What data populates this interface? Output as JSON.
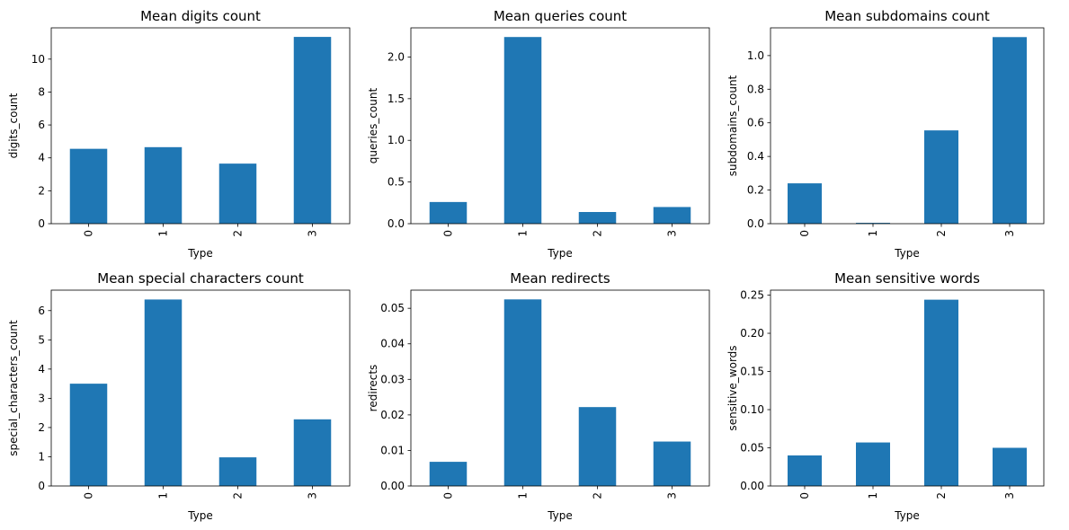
{
  "figure": {
    "bar_color": "#1f77b4",
    "edge_color": "#000000",
    "background": "#ffffff"
  },
  "chart_data": [
    {
      "type": "bar",
      "title": "Mean digits count",
      "xlabel": "Type",
      "ylabel": "digits_count",
      "categories": [
        "0",
        "1",
        "2",
        "3"
      ],
      "values": [
        4.55,
        4.65,
        3.65,
        11.35
      ],
      "ylim": [
        0,
        11.9
      ],
      "yticks": [
        0,
        2,
        4,
        6,
        8,
        10
      ],
      "ytick_labels": [
        "0",
        "2",
        "4",
        "6",
        "8",
        "10"
      ],
      "grid": false,
      "legend": "none"
    },
    {
      "type": "bar",
      "title": "Mean queries count",
      "xlabel": "Type",
      "ylabel": "queries_count",
      "categories": [
        "0",
        "1",
        "2",
        "3"
      ],
      "values": [
        0.26,
        2.24,
        0.14,
        0.2
      ],
      "ylim": [
        0,
        2.35
      ],
      "yticks": [
        0,
        0.5,
        1,
        1.5,
        2
      ],
      "ytick_labels": [
        "0.0",
        "0.5",
        "1.0",
        "1.5",
        "2.0"
      ],
      "grid": false,
      "legend": "none"
    },
    {
      "type": "bar",
      "title": "Mean subdomains count",
      "xlabel": "Type",
      "ylabel": "subdomains_count",
      "categories": [
        "0",
        "1",
        "2",
        "3"
      ],
      "values": [
        0.24,
        0.005,
        0.555,
        1.11
      ],
      "ylim": [
        0,
        1.165
      ],
      "yticks": [
        0,
        0.2,
        0.4,
        0.6,
        0.8,
        1
      ],
      "ytick_labels": [
        "0.0",
        "0.2",
        "0.4",
        "0.6",
        "0.8",
        "1.0"
      ],
      "grid": false,
      "legend": "none"
    },
    {
      "type": "bar",
      "title": "Mean special characters count",
      "xlabel": "Type",
      "ylabel": "special_characters_count",
      "categories": [
        "0",
        "1",
        "2",
        "3"
      ],
      "values": [
        3.5,
        6.38,
        0.98,
        2.28
      ],
      "ylim": [
        0,
        6.7
      ],
      "yticks": [
        0,
        1,
        2,
        3,
        4,
        5,
        6
      ],
      "ytick_labels": [
        "0",
        "1",
        "2",
        "3",
        "4",
        "5",
        "6"
      ],
      "grid": false,
      "legend": "none"
    },
    {
      "type": "bar",
      "title": "Mean redirects",
      "xlabel": "Type",
      "ylabel": "redirects",
      "categories": [
        "0",
        "1",
        "2",
        "3"
      ],
      "values": [
        0.0068,
        0.0525,
        0.0222,
        0.0125
      ],
      "ylim": [
        0,
        0.0551
      ],
      "yticks": [
        0,
        0.01,
        0.02,
        0.03,
        0.04,
        0.05
      ],
      "ytick_labels": [
        "0.00",
        "0.01",
        "0.02",
        "0.03",
        "0.04",
        "0.05"
      ],
      "grid": false,
      "legend": "none"
    },
    {
      "type": "bar",
      "title": "Mean sensitive words",
      "xlabel": "Type",
      "ylabel": "sensitive_words",
      "categories": [
        "0",
        "1",
        "2",
        "3"
      ],
      "values": [
        0.04,
        0.057,
        0.244,
        0.05
      ],
      "ylim": [
        0,
        0.2565
      ],
      "yticks": [
        0,
        0.05,
        0.1,
        0.15,
        0.2,
        0.25
      ],
      "ytick_labels": [
        "0.00",
        "0.05",
        "0.10",
        "0.15",
        "0.20",
        "0.25"
      ],
      "grid": false,
      "legend": "none"
    }
  ]
}
